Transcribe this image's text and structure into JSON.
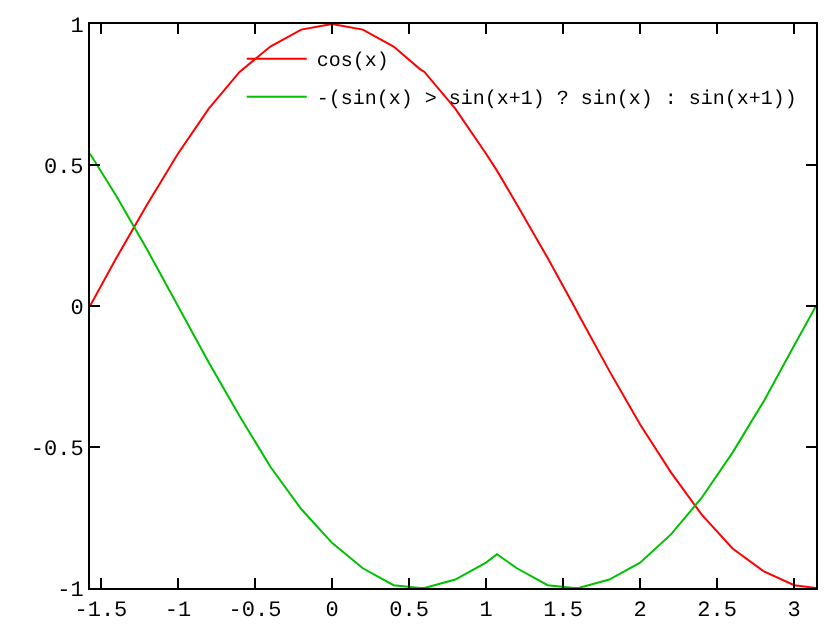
{
  "chart_data": {
    "type": "line",
    "x": [
      -1.5708,
      -1.4,
      -1.2,
      -1.0,
      -0.8,
      -0.6,
      -0.4,
      -0.2,
      0,
      0.2,
      0.4,
      0.5708,
      0.6,
      0.8,
      1.0,
      1.0708,
      1.2,
      1.4,
      1.5708,
      1.6,
      1.8,
      2.0,
      2.2,
      2.4,
      2.6,
      2.8,
      3.0,
      3.1416
    ],
    "series": [
      {
        "name": "cos(x)",
        "color": "#ff0000",
        "values": [
          0,
          0.17,
          0.36,
          0.54,
          0.7,
          0.83,
          0.92,
          0.98,
          1,
          0.98,
          0.92,
          0.84,
          0.83,
          0.7,
          0.54,
          0.48,
          0.36,
          0.17,
          0,
          -0.03,
          -0.23,
          -0.42,
          -0.59,
          -0.74,
          -0.86,
          -0.94,
          -0.99,
          -1
        ]
      },
      {
        "name": "-(sin(x) > sin(x+1) ? sin(x) : sin(x+1))",
        "color": "#00c000",
        "values": [
          0.54,
          0.39,
          0.2,
          0,
          -0.2,
          -0.39,
          -0.57,
          -0.72,
          -0.84,
          -0.93,
          -0.99,
          -1,
          -1,
          -0.97,
          -0.91,
          -0.88,
          -0.93,
          -0.99,
          -1,
          -1,
          -0.97,
          -0.91,
          -0.81,
          -0.68,
          -0.52,
          -0.34,
          -0.14,
          0
        ]
      }
    ],
    "xlim": [
      -1.5708,
      3.1416
    ],
    "xticks": [
      -1.5,
      -1,
      -0.5,
      0,
      0.5,
      1,
      1.5,
      2,
      2.5,
      3
    ],
    "ylim": [
      -1,
      1
    ],
    "yticks": [
      -1,
      -0.5,
      0,
      0.5,
      1
    ],
    "legend": "top right",
    "marker": "none",
    "line_style": "solid"
  }
}
